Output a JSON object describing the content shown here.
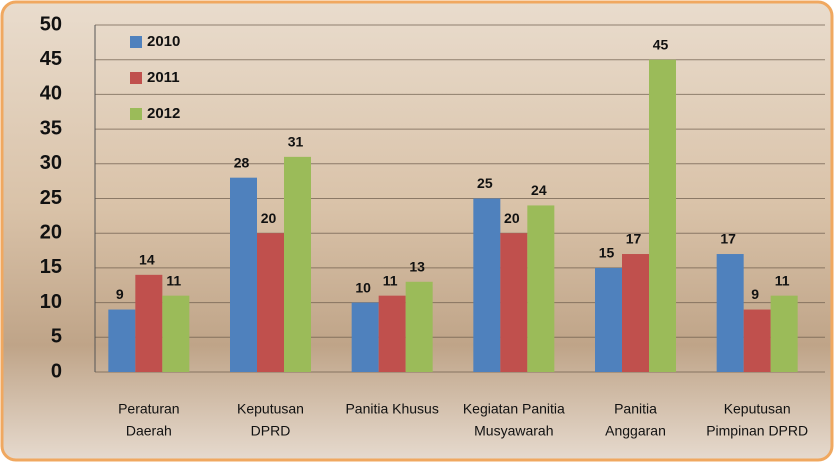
{
  "chart_data": {
    "type": "bar",
    "categories": [
      [
        "Peraturan",
        "Daerah"
      ],
      [
        "Keputusan",
        "DPRD"
      ],
      [
        "Panitia Khusus"
      ],
      [
        "Kegiatan Panitia",
        "Musyawarah"
      ],
      [
        "Panitia",
        "Anggaran"
      ],
      [
        "Keputusan",
        "Pimpinan DPRD"
      ]
    ],
    "series": [
      {
        "name": "2010",
        "color": "#4f81bd",
        "values": [
          9,
          28,
          10,
          25,
          15,
          17
        ]
      },
      {
        "name": "2011",
        "color": "#c0504d",
        "values": [
          14,
          20,
          11,
          20,
          17,
          9
        ]
      },
      {
        "name": "2012",
        "color": "#9bbb59",
        "values": [
          11,
          31,
          13,
          24,
          45,
          11
        ]
      }
    ],
    "ylim": [
      0,
      50
    ],
    "yticks": [
      0,
      5,
      10,
      15,
      20,
      25,
      30,
      35,
      40,
      45,
      50
    ],
    "grid": true,
    "legend": "top-left"
  }
}
